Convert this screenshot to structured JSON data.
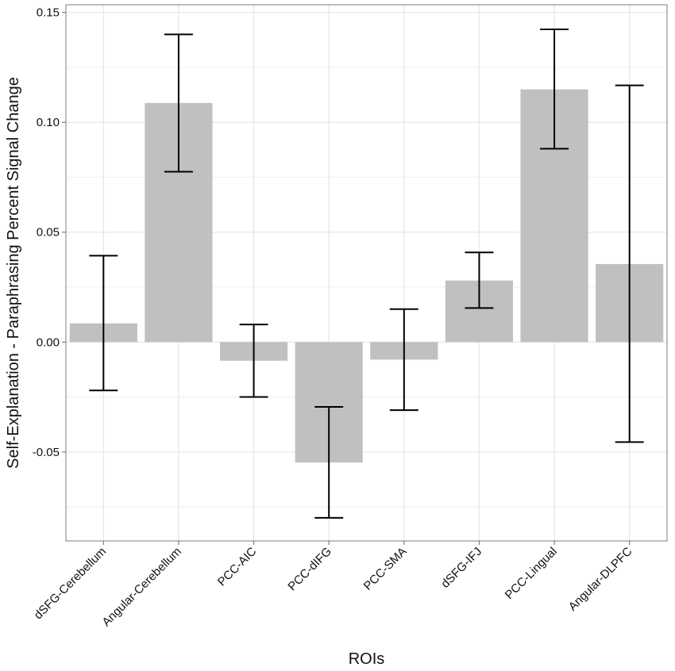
{
  "chart_data": {
    "type": "bar",
    "title": "",
    "xlabel": "ROIs",
    "ylabel": "Self-Explanation - Paraphrasing Percent Signal Change",
    "categories": [
      "dSFG-Cerebellum",
      "Angular-Cerebellum",
      "PCC-AIC",
      "PCC-dIFG",
      "PCC-SMA",
      "dSFG-IFJ",
      "PCC-Lingual",
      "Angular-DLPFC"
    ],
    "values": [
      0.0085,
      0.1088,
      -0.0085,
      -0.0548,
      -0.008,
      0.028,
      0.115,
      0.0355
    ],
    "error_low": [
      -0.022,
      0.0775,
      -0.025,
      -0.08,
      -0.031,
      0.0155,
      0.088,
      -0.0455
    ],
    "error_high": [
      0.0393,
      0.14,
      0.008,
      -0.0295,
      0.015,
      0.0408,
      0.1423,
      0.1168
    ],
    "ylim": [
      -0.0905,
      0.1535
    ],
    "yticks": [
      -0.05,
      0.0,
      0.05,
      0.1,
      0.15
    ],
    "ytick_labels": [
      "-0.05",
      "0.00",
      "0.05",
      "0.10",
      "0.15"
    ],
    "grid": true,
    "bar_color": "#c0c0c0",
    "grid_color": "#e6e6e6",
    "axis_color": "#7f7f7f",
    "error_color": "#000000"
  }
}
